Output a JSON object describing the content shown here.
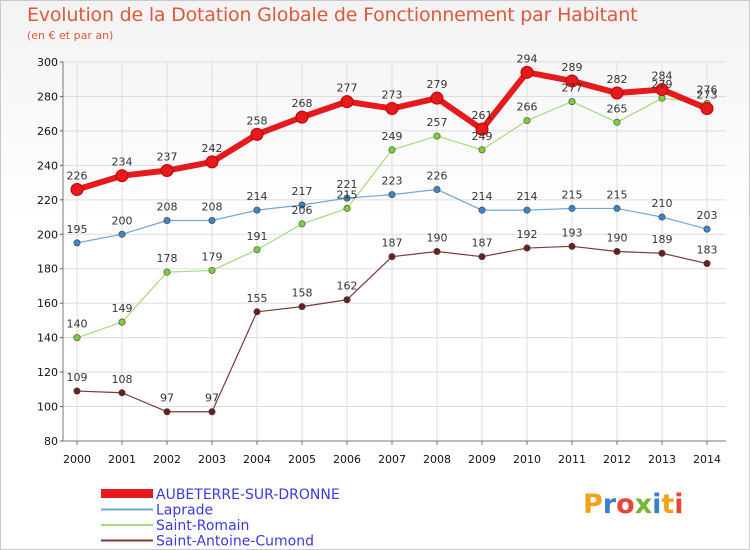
{
  "title": "Evolution de la Dotation Globale de Fonctionnement par Habitant",
  "subtitle": "(en € et par an)",
  "logo_text": "Proxiti",
  "colors": {
    "title": "#e0573b",
    "grid": "#dddddd",
    "axis": "#777777",
    "legend_text": "#3a3adf"
  },
  "chart_data": {
    "type": "line",
    "title": "Evolution de la Dotation Globale de Fonctionnement par Habitant",
    "subtitle": "(en € et par an)",
    "xlabel": "",
    "ylabel": "",
    "x": [
      2000,
      2001,
      2002,
      2003,
      2004,
      2005,
      2006,
      2007,
      2008,
      2009,
      2010,
      2011,
      2012,
      2013,
      2014
    ],
    "ylim": [
      80,
      300
    ],
    "yticks": [
      80,
      100,
      120,
      140,
      160,
      180,
      200,
      220,
      240,
      260,
      280,
      300
    ],
    "grid": true,
    "legend_position": "bottom-left",
    "series": [
      {
        "name": "AUBETERRE-SUR-DRONNE",
        "color": "#e41a1c",
        "marker_color": "#e41a1c",
        "line_width": 6,
        "values": [
          226,
          234,
          237,
          242,
          258,
          268,
          277,
          273,
          279,
          261,
          294,
          289,
          282,
          284,
          273
        ],
        "labels": [
          "226",
          "234",
          "237",
          "242",
          "258",
          "268",
          "277",
          "273",
          "279",
          "261",
          "294",
          "289",
          "282",
          "284",
          "273"
        ]
      },
      {
        "name": "Laprade",
        "color": "#6fa8dc",
        "marker_color": "#3d85c6",
        "line_width": 1.2,
        "values": [
          195,
          200,
          208,
          208,
          214,
          217,
          221,
          223,
          226,
          214,
          214,
          215,
          215,
          210,
          203
        ],
        "labels": [
          "195",
          "200",
          "208",
          "208",
          "214",
          "217",
          "221",
          "223",
          "226",
          "214",
          "214",
          "215",
          "215",
          "210",
          "203"
        ]
      },
      {
        "name": "Saint-Romain",
        "color": "#a4dc7a",
        "marker_color": "#7ccf3c",
        "line_width": 1.2,
        "values": [
          140,
          149,
          178,
          179,
          191,
          206,
          215,
          249,
          257,
          249,
          266,
          277,
          265,
          279,
          276
        ],
        "labels": [
          "140",
          "149",
          "178",
          "179",
          "191",
          "206",
          "215",
          "249",
          "257",
          "249",
          "266",
          "277",
          "265",
          "279",
          "276"
        ]
      },
      {
        "name": "Saint-Antoine-Cumond",
        "color": "#7a3b3b",
        "marker_color": "#6b1f1f",
        "line_width": 1.2,
        "values": [
          109,
          108,
          97,
          97,
          155,
          158,
          162,
          187,
          190,
          187,
          192,
          193,
          190,
          189,
          183
        ],
        "labels": [
          "109",
          "108",
          "97",
          "97",
          "155",
          "158",
          "162",
          "187",
          "190",
          "187",
          "192",
          "193",
          "190",
          "189",
          "183"
        ]
      }
    ]
  }
}
